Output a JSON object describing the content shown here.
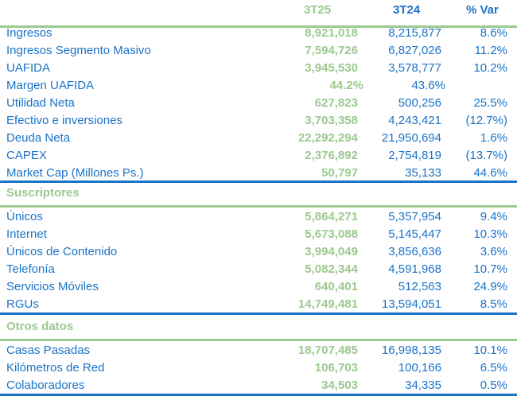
{
  "header": {
    "col1": "3T25",
    "col2": "3T24",
    "col3": "% Var"
  },
  "colors": {
    "green": "#9bc98f",
    "blue": "#1a73c8"
  },
  "sections": [
    {
      "title": "",
      "rows": [
        {
          "label": "Ingresos",
          "v1": "8,921,018",
          "v2": "8,215,877",
          "var": "8.6%"
        },
        {
          "label": "Ingresos Segmento Masivo",
          "v1": "7,594,726",
          "v2": "6,827,026",
          "var": "11.2%"
        },
        {
          "label": "UAFIDA",
          "v1": "3,945,530",
          "v2": "3,578,777",
          "var": "10.2%"
        },
        {
          "label": "Margen UAFIDA",
          "v1": "44.2%",
          "v2": "43.6%",
          "var": ""
        },
        {
          "label": "Utilidad Neta",
          "v1": "627,823",
          "v2": "500,256",
          "var": "25.5%"
        },
        {
          "label": "Efectivo e inversiones",
          "v1": "3,703,358",
          "v2": "4,243,421",
          "var": "(12.7%)"
        },
        {
          "label": "Deuda Neta",
          "v1": "22,292,294",
          "v2": "21,950,694",
          "var": "1.6%"
        },
        {
          "label": "CAPEX",
          "v1": "2,376,892",
          "v2": "2,754,819",
          "var": "(13.7%)"
        },
        {
          "label": "Market Cap (Millones Ps.)",
          "v1": "50,797",
          "v2": "35,133",
          "var": "44.6%"
        }
      ]
    },
    {
      "title": "Suscriptores",
      "rows": [
        {
          "label": "Únicos",
          "v1": "5,864,271",
          "v2": "5,357,954",
          "var": "9.4%"
        },
        {
          "label": "Internet",
          "v1": "5,673,088",
          "v2": "5,145,447",
          "var": "10.3%"
        },
        {
          "label": "Únicos de Contenido",
          "v1": "3,994,049",
          "v2": "3,856,636",
          "var": "3.6%"
        },
        {
          "label": "Telefonía",
          "v1": "5,082,344",
          "v2": "4,591,968",
          "var": "10.7%"
        },
        {
          "label": "Servicios Móviles",
          "v1": "640,401",
          "v2": "512,563",
          "var": "24.9%"
        },
        {
          "label": "RGUs",
          "v1": "14,749,481",
          "v2": "13,594,051",
          "var": "8.5%"
        }
      ]
    },
    {
      "title": "Otros datos",
      "rows": [
        {
          "label": "Casas Pasadas",
          "v1": "18,707,485",
          "v2": "16,998,135",
          "var": "10.1%"
        },
        {
          "label": "Kilómetros de Red",
          "v1": "106,703",
          "v2": "100,166",
          "var": "6.5%"
        },
        {
          "label": "Colaboradores",
          "v1": "34,503",
          "v2": "34,335",
          "var": "0.5%"
        }
      ]
    }
  ]
}
